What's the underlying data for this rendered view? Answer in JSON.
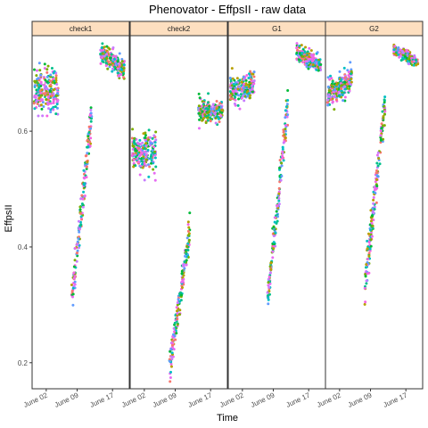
{
  "chart_data": {
    "type": "scatter",
    "title": "Phenovator - EffpsII - raw data",
    "xlabel": "Time",
    "ylabel": "EffpsII",
    "ylim": [
      0.155,
      0.765
    ],
    "yticks": [
      0.2,
      0.4,
      0.6
    ],
    "xticks": [
      "June 02",
      "June 09",
      "June 17"
    ],
    "xlim_days": [
      -3.2,
      18.8
    ],
    "grid": false,
    "legend": "none",
    "facets": [
      {
        "name": "check1",
        "clusters": [
          {
            "day": 0,
            "y_center": 0.67,
            "spread": 0.04,
            "slope": 0.0
          },
          {
            "day": 8,
            "y_start": 0.3,
            "y_end": 0.63,
            "spread": 0.03
          },
          {
            "day": 15,
            "y_center": 0.72,
            "spread": 0.02,
            "slope": -0.003
          }
        ]
      },
      {
        "name": "check2",
        "clusters": [
          {
            "day": 0,
            "y_center": 0.565,
            "spread": 0.04,
            "slope": 0.0
          },
          {
            "day": 8,
            "y_start": 0.19,
            "y_end": 0.43,
            "spread": 0.025
          },
          {
            "day": 15,
            "y_center": 0.635,
            "spread": 0.02,
            "slope": 0.0
          }
        ]
      },
      {
        "name": "G1",
        "clusters": [
          {
            "day": 0,
            "y_center": 0.675,
            "spread": 0.025,
            "slope": 0.001
          },
          {
            "day": 8,
            "y_start": 0.31,
            "y_end": 0.64,
            "spread": 0.03
          },
          {
            "day": 15,
            "y_center": 0.725,
            "spread": 0.015,
            "slope": -0.002
          }
        ]
      },
      {
        "name": "G2",
        "clusters": [
          {
            "day": 0,
            "y_center": 0.675,
            "spread": 0.025,
            "slope": 0.003
          },
          {
            "day": 8,
            "y_start": 0.33,
            "y_end": 0.65,
            "spread": 0.03
          },
          {
            "day": 15,
            "y_center": 0.73,
            "spread": 0.01,
            "slope": -0.002
          }
        ]
      }
    ],
    "point_colors": [
      "#F8766D",
      "#7CAE00",
      "#00BFC4",
      "#C77CFF",
      "#E76BF3",
      "#00BA38",
      "#B79F00",
      "#619CFF",
      "#F564E3",
      "#00C08B"
    ]
  }
}
